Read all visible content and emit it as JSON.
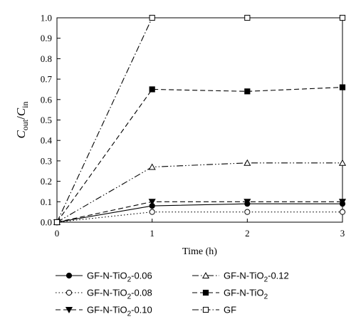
{
  "chart_data": {
    "type": "line",
    "x": [
      0,
      1,
      2,
      3
    ],
    "xlabel": "Time (h)",
    "ylabel": {
      "main": "C",
      "sub_num": "out",
      "sep": "/",
      "main2": "C",
      "sub_den": "in"
    },
    "xlim": [
      0,
      3
    ],
    "ylim": [
      0,
      1.0
    ],
    "x_ticks": [
      "0",
      "1",
      "2",
      "3"
    ],
    "y_ticks": [
      "0.0",
      "0.1",
      "0.2",
      "0.3",
      "0.4",
      "0.5",
      "0.6",
      "0.7",
      "0.8",
      "0.9",
      "1.0"
    ],
    "grid": false,
    "legend_position": "bottom",
    "series": [
      {
        "name_parts": [
          "GF-N-TiO",
          "2",
          "-0.06"
        ],
        "values": [
          0.0,
          0.08,
          0.09,
          0.09
        ],
        "marker": "filled-circle",
        "line": "solid"
      },
      {
        "name_parts": [
          "GF-N-TiO",
          "2",
          "-0.08"
        ],
        "values": [
          0.0,
          0.05,
          0.05,
          0.05
        ],
        "marker": "open-circle",
        "line": "dotted"
      },
      {
        "name_parts": [
          "GF-N-TiO",
          "2",
          "-0.10"
        ],
        "values": [
          0.0,
          0.1,
          0.1,
          0.1
        ],
        "marker": "filled-triangle-down",
        "line": "dashed"
      },
      {
        "name_parts": [
          "GF-N-TiO",
          "2",
          "-0.12"
        ],
        "values": [
          0.0,
          0.27,
          0.29,
          0.29
        ],
        "marker": "open-triangle-up",
        "line": "dash-dot-dot"
      },
      {
        "name_parts": [
          "GF-N-TiO",
          "2",
          ""
        ],
        "values": [
          0.0,
          0.65,
          0.64,
          0.66
        ],
        "marker": "filled-square",
        "line": "dashed"
      },
      {
        "name_parts": [
          "GF",
          "",
          ""
        ],
        "values": [
          0.0,
          1.0,
          1.0,
          1.0
        ],
        "marker": "open-square",
        "line": "dash-dot"
      }
    ]
  }
}
